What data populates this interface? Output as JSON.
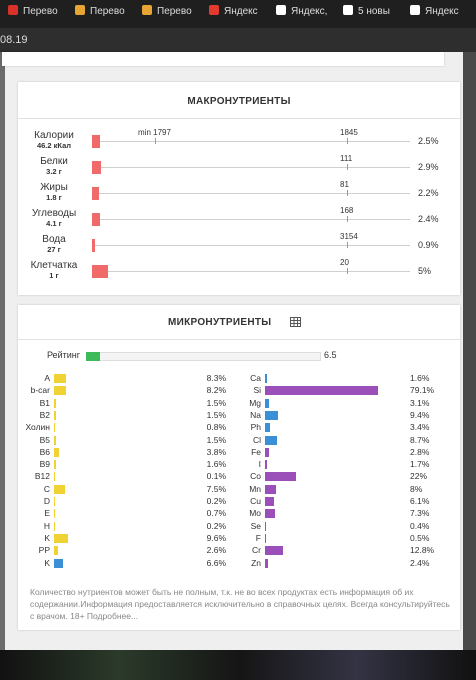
{
  "tabs": [
    "Перево",
    "Перево",
    "Перево",
    "Яндекс",
    "Яндекс,",
    "5 новы",
    "Яндекс"
  ],
  "address": "08.19",
  "macros": {
    "title": "МАКРОНУТРИЕНТЫ",
    "rows": [
      {
        "name": "Калории",
        "amount": "46.2 кКал",
        "min": "min 1797",
        "norm": "1845",
        "percent": "2.5%"
      },
      {
        "name": "Белки",
        "amount": "3.2 г",
        "norm": "111",
        "percent": "2.9%"
      },
      {
        "name": "Жиры",
        "amount": "1.8 г",
        "norm": "81",
        "percent": "2.2%"
      },
      {
        "name": "Углеводы",
        "amount": "4.1 г",
        "norm": "168",
        "percent": "2.4%"
      },
      {
        "name": "Вода",
        "amount": "27 г",
        "norm": "3154",
        "percent": "0.9%"
      },
      {
        "name": "Клетчатка",
        "amount": "1 г",
        "norm": "20",
        "percent": "5%"
      }
    ]
  },
  "micros": {
    "title": "МИКРОНУТРИЕНТЫ",
    "rating_label": "Рейтинг",
    "rating": "6.5",
    "left": [
      {
        "name": "A",
        "percent": "8.3%",
        "color": "#f0d232"
      },
      {
        "name": "b-car",
        "percent": "8.2%",
        "color": "#f0d232"
      },
      {
        "name": "B1",
        "percent": "1.5%",
        "color": "#f0d232"
      },
      {
        "name": "B2",
        "percent": "1.5%",
        "color": "#f0d232"
      },
      {
        "name": "Холин",
        "percent": "0.8%",
        "color": "#f0d232"
      },
      {
        "name": "B5",
        "percent": "1.5%",
        "color": "#f0d232"
      },
      {
        "name": "B6",
        "percent": "3.8%",
        "color": "#f0d232"
      },
      {
        "name": "B9",
        "percent": "1.6%",
        "color": "#f0d232"
      },
      {
        "name": "B12",
        "percent": "0.1%",
        "color": "#f0d232"
      },
      {
        "name": "C",
        "percent": "7.5%",
        "color": "#f0d232"
      },
      {
        "name": "D",
        "percent": "0.2%",
        "color": "#f0d232"
      },
      {
        "name": "E",
        "percent": "0.7%",
        "color": "#f0d232"
      },
      {
        "name": "H",
        "percent": "0.2%",
        "color": "#f0d232"
      },
      {
        "name": "K",
        "percent": "9.6%",
        "color": "#f0d232"
      },
      {
        "name": "PP",
        "percent": "2.6%",
        "color": "#f0d232"
      },
      {
        "name": "K",
        "percent": "6.6%",
        "color": "#3a8fd6"
      }
    ],
    "right": [
      {
        "name": "Ca",
        "percent": "1.6%",
        "color": "#3a8fd6"
      },
      {
        "name": "Si",
        "percent": "79.1%",
        "color": "#9b4fb8"
      },
      {
        "name": "Mg",
        "percent": "3.1%",
        "color": "#3a8fd6"
      },
      {
        "name": "Na",
        "percent": "9.4%",
        "color": "#3a8fd6"
      },
      {
        "name": "Ph",
        "percent": "3.4%",
        "color": "#3a8fd6"
      },
      {
        "name": "Cl",
        "percent": "8.7%",
        "color": "#3a8fd6"
      },
      {
        "name": "Fe",
        "percent": "2.8%",
        "color": "#9b4fb8"
      },
      {
        "name": "I",
        "percent": "1.7%",
        "color": "#9b4fb8"
      },
      {
        "name": "Co",
        "percent": "22%",
        "color": "#9b4fb8"
      },
      {
        "name": "Mn",
        "percent": "8%",
        "color": "#9b4fb8"
      },
      {
        "name": "Cu",
        "percent": "6.1%",
        "color": "#9b4fb8"
      },
      {
        "name": "Mo",
        "percent": "7.3%",
        "color": "#9b4fb8"
      },
      {
        "name": "Se",
        "percent": "0.4%",
        "color": "#9b4fb8"
      },
      {
        "name": "F",
        "percent": "0.5%",
        "color": "#9b4fb8"
      },
      {
        "name": "Cr",
        "percent": "12.8%",
        "color": "#9b4fb8"
      },
      {
        "name": "Zn",
        "percent": "2.4%",
        "color": "#9b4fb8"
      }
    ],
    "note": "Количество нутриентов может быть не полным, т.к. не во всех продуктах есть информация об их содержании.Информация предоставляется исключительно в справочных целях. Всегда консультируйтесь с врачом. 18+ Подробнее..."
  }
}
